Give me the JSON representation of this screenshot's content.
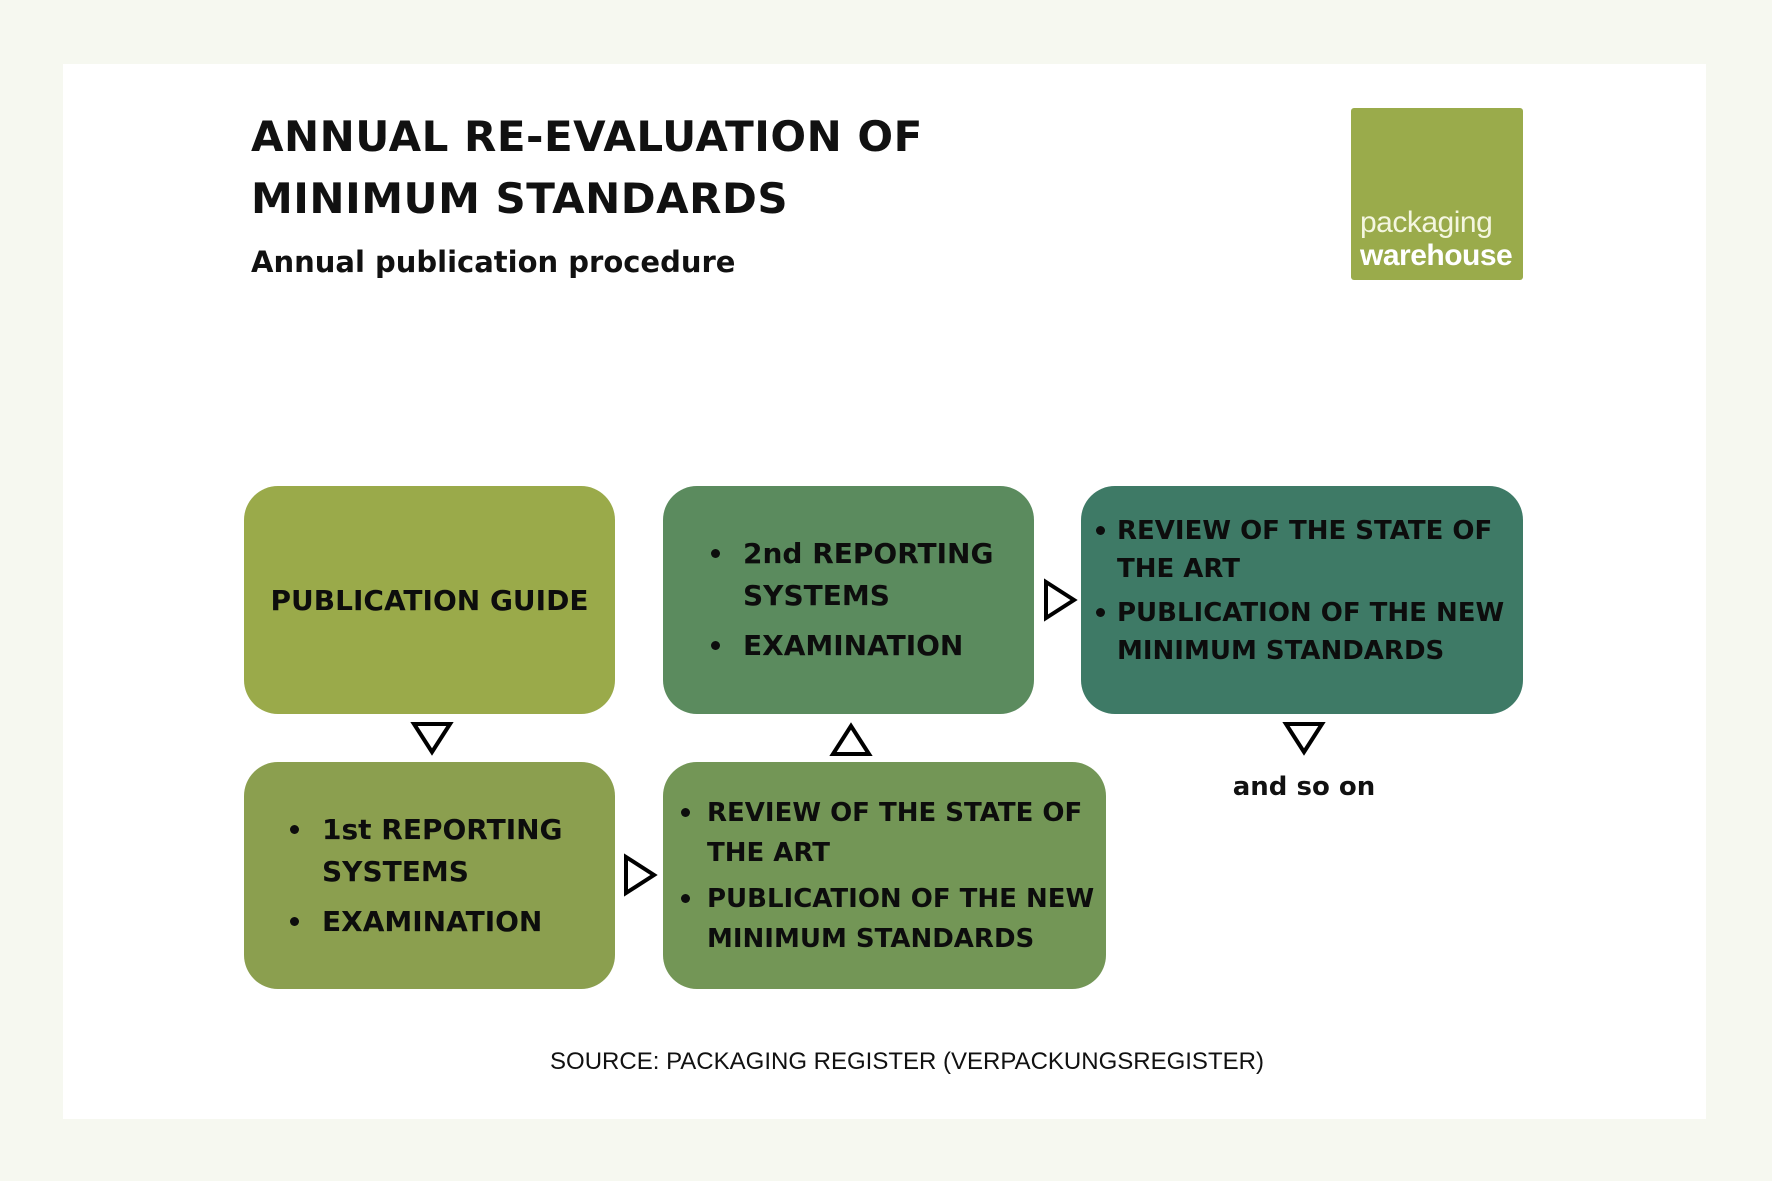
{
  "header": {
    "title_line1": "ANNUAL RE-EVALUATION OF",
    "title_line2": "MINIMUM STANDARDS",
    "subtitle": "Annual publication procedure"
  },
  "logo": {
    "line1": "packaging",
    "line2": "warehouse",
    "color": "#9aab4b"
  },
  "boxes": [
    {
      "id": "publication-guide",
      "color": "#9aaa4a",
      "label": "PUBLICATION GUIDE"
    },
    {
      "id": "first-reporting",
      "color": "#8b9f4f",
      "items": [
        "1st REPORTING SYSTEMS",
        "EXAMINATION"
      ]
    },
    {
      "id": "first-review",
      "color": "#739656",
      "items": [
        "REVIEW OF THE STATE OF THE ART",
        "PUBLICATION OF THE NEW MINIMUM STANDARDS"
      ]
    },
    {
      "id": "second-reporting",
      "color": "#5b8b5e",
      "items": [
        "2nd REPORTING SYSTEMS",
        "EXAMINATION"
      ]
    },
    {
      "id": "second-review",
      "color": "#3e7a66",
      "items": [
        "REVIEW OF THE STATE OF THE ART",
        "PUBLICATION OF THE NEW MINIMUM STANDARDS"
      ]
    }
  ],
  "continuation": "and so on",
  "source": "SOURCE: PACKAGING REGISTER (VERPACKUNGSREGISTER)"
}
